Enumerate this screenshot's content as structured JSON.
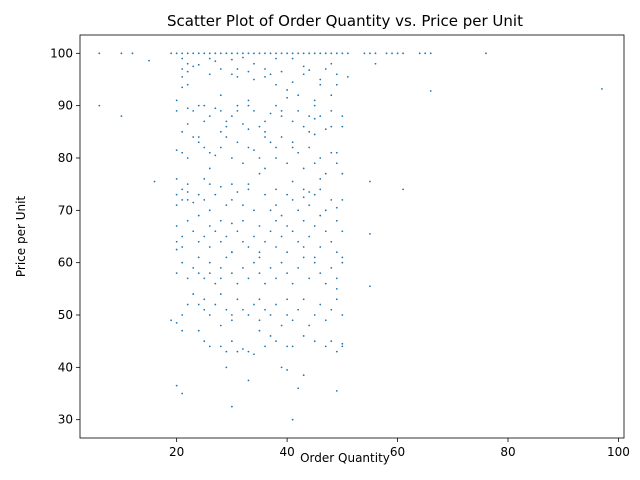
{
  "chart_data": {
    "type": "scatter",
    "title": "Scatter Plot of Order Quantity vs. Price per Unit",
    "xlabel": "Order Quantity",
    "ylabel": "Price per Unit",
    "xlim": [
      2.5,
      101
    ],
    "ylim": [
      26.5,
      103.5
    ],
    "xticks": [
      20,
      40,
      60,
      80,
      100
    ],
    "yticks": [
      30,
      40,
      50,
      60,
      70,
      80,
      90,
      100
    ],
    "grid": false,
    "marker_color": "#1f77b4",
    "points": [
      [
        6,
        100
      ],
      [
        10,
        100
      ],
      [
        12,
        100
      ],
      [
        15,
        98.6
      ],
      [
        19,
        100
      ],
      [
        20,
        100
      ],
      [
        21,
        100
      ],
      [
        22,
        100
      ],
      [
        23,
        100
      ],
      [
        24,
        100
      ],
      [
        25,
        100
      ],
      [
        26,
        100
      ],
      [
        27,
        100
      ],
      [
        28,
        100
      ],
      [
        29,
        100
      ],
      [
        30,
        100
      ],
      [
        31,
        100
      ],
      [
        32,
        100
      ],
      [
        33,
        100
      ],
      [
        34,
        100
      ],
      [
        35,
        100
      ],
      [
        36,
        100
      ],
      [
        37,
        100
      ],
      [
        38,
        100
      ],
      [
        39,
        100
      ],
      [
        40,
        100
      ],
      [
        41,
        100
      ],
      [
        42,
        100
      ],
      [
        43,
        100
      ],
      [
        44,
        100
      ],
      [
        45,
        100
      ],
      [
        46,
        100
      ],
      [
        47,
        100
      ],
      [
        48,
        100
      ],
      [
        49,
        100
      ],
      [
        50,
        100
      ],
      [
        51,
        100
      ],
      [
        54,
        100
      ],
      [
        55,
        100
      ],
      [
        56,
        100
      ],
      [
        58,
        100
      ],
      [
        59,
        100
      ],
      [
        60,
        100
      ],
      [
        61,
        100
      ],
      [
        64,
        100
      ],
      [
        65,
        100
      ],
      [
        66,
        100
      ],
      [
        76,
        100
      ],
      [
        21,
        99
      ],
      [
        22,
        98
      ],
      [
        21,
        97
      ],
      [
        22,
        96.5
      ],
      [
        21,
        95.5
      ],
      [
        22,
        94
      ],
      [
        21,
        93.5
      ],
      [
        23,
        97.5
      ],
      [
        24,
        97.8
      ],
      [
        26,
        99
      ],
      [
        26,
        96
      ],
      [
        27,
        98.5
      ],
      [
        28,
        97
      ],
      [
        30,
        98.8
      ],
      [
        30,
        96
      ],
      [
        31,
        97
      ],
      [
        31,
        95.5
      ],
      [
        32,
        99.2
      ],
      [
        33,
        96.5
      ],
      [
        34,
        98
      ],
      [
        34,
        95
      ],
      [
        36,
        97
      ],
      [
        36,
        95.5
      ],
      [
        37,
        96
      ],
      [
        38,
        99
      ],
      [
        38,
        94
      ],
      [
        39,
        96.5
      ],
      [
        40,
        93
      ],
      [
        41,
        99
      ],
      [
        41,
        94.5
      ],
      [
        42,
        92
      ],
      [
        43,
        97.5
      ],
      [
        43,
        96
      ],
      [
        44,
        96.8
      ],
      [
        45,
        91
      ],
      [
        46,
        95
      ],
      [
        46,
        94
      ],
      [
        47,
        97
      ],
      [
        48,
        98
      ],
      [
        48,
        92
      ],
      [
        49,
        96
      ],
      [
        49,
        94
      ],
      [
        51,
        95.5
      ],
      [
        56,
        98
      ],
      [
        66,
        92.8
      ],
      [
        97,
        93.2
      ],
      [
        6,
        90
      ],
      [
        10,
        88
      ],
      [
        20,
        91
      ],
      [
        20,
        89
      ],
      [
        22,
        89.5
      ],
      [
        23,
        89
      ],
      [
        24,
        90
      ],
      [
        25,
        87
      ],
      [
        25,
        90
      ],
      [
        26,
        88
      ],
      [
        27,
        89.5
      ],
      [
        28,
        92
      ],
      [
        28,
        89
      ],
      [
        29,
        87
      ],
      [
        29,
        86
      ],
      [
        30,
        88
      ],
      [
        31,
        90
      ],
      [
        31,
        89
      ],
      [
        32,
        86.5
      ],
      [
        33,
        91
      ],
      [
        33,
        90
      ],
      [
        34,
        89
      ],
      [
        35,
        86
      ],
      [
        36,
        87
      ],
      [
        36,
        85
      ],
      [
        37,
        88.5
      ],
      [
        38,
        90
      ],
      [
        39,
        89
      ],
      [
        39,
        88
      ],
      [
        40,
        91.5
      ],
      [
        41,
        87
      ],
      [
        42,
        89
      ],
      [
        43,
        86
      ],
      [
        44,
        85
      ],
      [
        44,
        88
      ],
      [
        45,
        90
      ],
      [
        45,
        87.5
      ],
      [
        46,
        88
      ],
      [
        47,
        85.5
      ],
      [
        48,
        89
      ],
      [
        48,
        86
      ],
      [
        50,
        88
      ],
      [
        50,
        86
      ],
      [
        41,
        82
      ],
      [
        38,
        82
      ],
      [
        22,
        86.5
      ],
      [
        24,
        84
      ],
      [
        20,
        81.5
      ],
      [
        21,
        85
      ],
      [
        21,
        81
      ],
      [
        22,
        80
      ],
      [
        23,
        84
      ],
      [
        24,
        83
      ],
      [
        25,
        82
      ],
      [
        26,
        81
      ],
      [
        26,
        78
      ],
      [
        27,
        80.5
      ],
      [
        28,
        85
      ],
      [
        28,
        82
      ],
      [
        29,
        84
      ],
      [
        30,
        80
      ],
      [
        31,
        83
      ],
      [
        32,
        79
      ],
      [
        33,
        85.5
      ],
      [
        33,
        82
      ],
      [
        34,
        81.5
      ],
      [
        35,
        80
      ],
      [
        36,
        84
      ],
      [
        36,
        78
      ],
      [
        37,
        83
      ],
      [
        38,
        80
      ],
      [
        39,
        84
      ],
      [
        40,
        79
      ],
      [
        41,
        83
      ],
      [
        42,
        81
      ],
      [
        43,
        78
      ],
      [
        44,
        82
      ],
      [
        45,
        79
      ],
      [
        45,
        84.5
      ],
      [
        46,
        80
      ],
      [
        47,
        77
      ],
      [
        48,
        81
      ],
      [
        49,
        79
      ],
      [
        49,
        81
      ],
      [
        50,
        77
      ],
      [
        16,
        75.5
      ],
      [
        20,
        76
      ],
      [
        20,
        73
      ],
      [
        21,
        74
      ],
      [
        21,
        72
      ],
      [
        22,
        75
      ],
      [
        22,
        73.5
      ],
      [
        23,
        71.5
      ],
      [
        24,
        73
      ],
      [
        25,
        76
      ],
      [
        25,
        72
      ],
      [
        26,
        70
      ],
      [
        26,
        75
      ],
      [
        27,
        73
      ],
      [
        28,
        74.5
      ],
      [
        29,
        71
      ],
      [
        30,
        75
      ],
      [
        30,
        72
      ],
      [
        31,
        73.5
      ],
      [
        32,
        71
      ],
      [
        33,
        75
      ],
      [
        33,
        74
      ],
      [
        34,
        70
      ],
      [
        35,
        77
      ],
      [
        36,
        73
      ],
      [
        37,
        70
      ],
      [
        38,
        74
      ],
      [
        38,
        71
      ],
      [
        39,
        69
      ],
      [
        40,
        73
      ],
      [
        41,
        75.5
      ],
      [
        41,
        72
      ],
      [
        42,
        70
      ],
      [
        43,
        74
      ],
      [
        43,
        72.5
      ],
      [
        44,
        71
      ],
      [
        45,
        73
      ],
      [
        46,
        74
      ],
      [
        46,
        76
      ],
      [
        47,
        70
      ],
      [
        48,
        72
      ],
      [
        49,
        70.5
      ],
      [
        50,
        72
      ],
      [
        55,
        75.5
      ],
      [
        61,
        74
      ],
      [
        20,
        71
      ],
      [
        22,
        72
      ],
      [
        44,
        73.5
      ],
      [
        20,
        67
      ],
      [
        20,
        64
      ],
      [
        21,
        63
      ],
      [
        21,
        65
      ],
      [
        22,
        68
      ],
      [
        23,
        66
      ],
      [
        24,
        64
      ],
      [
        24,
        69
      ],
      [
        25,
        65
      ],
      [
        26,
        67
      ],
      [
        26,
        63
      ],
      [
        27,
        66
      ],
      [
        28,
        68
      ],
      [
        28,
        64
      ],
      [
        29,
        65
      ],
      [
        30,
        67.5
      ],
      [
        30,
        62
      ],
      [
        31,
        66
      ],
      [
        32,
        68
      ],
      [
        32,
        64
      ],
      [
        33,
        63
      ],
      [
        34,
        65
      ],
      [
        35,
        67
      ],
      [
        35,
        62
      ],
      [
        36,
        64
      ],
      [
        37,
        66
      ],
      [
        38,
        68
      ],
      [
        38,
        63
      ],
      [
        39,
        65
      ],
      [
        40,
        67
      ],
      [
        40,
        62
      ],
      [
        41,
        66
      ],
      [
        42,
        64
      ],
      [
        43,
        68
      ],
      [
        43,
        63
      ],
      [
        44,
        65
      ],
      [
        45,
        67
      ],
      [
        45,
        61
      ],
      [
        46,
        63
      ],
      [
        47,
        66
      ],
      [
        48,
        64
      ],
      [
        49,
        68
      ],
      [
        49,
        62
      ],
      [
        50,
        66
      ],
      [
        50,
        61
      ],
      [
        55,
        65.5
      ],
      [
        20,
        62.5
      ],
      [
        46,
        69
      ],
      [
        20,
        58
      ],
      [
        21,
        60
      ],
      [
        22,
        57
      ],
      [
        23,
        59
      ],
      [
        24,
        58
      ],
      [
        24,
        61
      ],
      [
        25,
        57
      ],
      [
        26,
        60
      ],
      [
        26,
        58
      ],
      [
        27,
        56
      ],
      [
        28,
        59
      ],
      [
        28,
        57
      ],
      [
        29,
        61
      ],
      [
        30,
        58
      ],
      [
        30,
        62
      ],
      [
        31,
        56
      ],
      [
        32,
        59
      ],
      [
        33,
        57
      ],
      [
        34,
        60
      ],
      [
        35,
        58
      ],
      [
        35,
        61
      ],
      [
        36,
        56
      ],
      [
        37,
        59
      ],
      [
        38,
        57
      ],
      [
        39,
        60
      ],
      [
        40,
        58
      ],
      [
        41,
        56
      ],
      [
        42,
        59
      ],
      [
        43,
        61
      ],
      [
        44,
        57
      ],
      [
        45,
        60
      ],
      [
        46,
        58
      ],
      [
        47,
        56
      ],
      [
        48,
        59
      ],
      [
        49,
        57
      ],
      [
        49,
        55
      ],
      [
        50,
        60
      ],
      [
        19,
        49
      ],
      [
        20,
        48.5
      ],
      [
        21,
        50
      ],
      [
        22,
        52
      ],
      [
        23,
        54
      ],
      [
        24,
        52
      ],
      [
        25,
        51
      ],
      [
        25,
        53
      ],
      [
        26,
        50
      ],
      [
        27,
        52
      ],
      [
        28,
        48
      ],
      [
        28,
        54
      ],
      [
        29,
        51
      ],
      [
        30,
        50
      ],
      [
        30,
        49
      ],
      [
        31,
        53
      ],
      [
        32,
        51
      ],
      [
        33,
        50
      ],
      [
        34,
        52
      ],
      [
        35,
        49
      ],
      [
        35,
        53
      ],
      [
        36,
        51
      ],
      [
        37,
        50
      ],
      [
        38,
        52
      ],
      [
        39,
        48
      ],
      [
        40,
        50
      ],
      [
        40,
        53
      ],
      [
        41,
        49
      ],
      [
        42,
        51
      ],
      [
        43,
        53
      ],
      [
        44,
        48
      ],
      [
        45,
        50
      ],
      [
        46,
        52
      ],
      [
        47,
        49
      ],
      [
        48,
        51
      ],
      [
        49,
        53
      ],
      [
        50,
        50
      ],
      [
        50,
        44.5
      ],
      [
        55,
        55.5
      ],
      [
        21,
        47
      ],
      [
        24,
        47
      ],
      [
        25,
        45
      ],
      [
        26,
        44
      ],
      [
        28,
        44
      ],
      [
        29,
        43
      ],
      [
        30,
        45
      ],
      [
        31,
        43
      ],
      [
        32,
        43.5
      ],
      [
        33,
        43
      ],
      [
        34,
        42.5
      ],
      [
        35,
        47
      ],
      [
        36,
        44
      ],
      [
        37,
        46
      ],
      [
        38,
        45
      ],
      [
        40,
        44
      ],
      [
        41,
        44
      ],
      [
        43,
        46
      ],
      [
        45,
        45
      ],
      [
        47,
        44
      ],
      [
        48,
        45
      ],
      [
        49,
        43
      ],
      [
        50,
        44
      ],
      [
        29,
        40
      ],
      [
        39,
        40
      ],
      [
        40,
        39.5
      ],
      [
        43,
        38.5
      ],
      [
        42,
        36
      ],
      [
        49,
        35.5
      ],
      [
        20,
        36.5
      ],
      [
        21,
        35
      ],
      [
        30,
        32.5
      ],
      [
        33,
        37.5
      ],
      [
        41,
        30
      ]
    ]
  }
}
